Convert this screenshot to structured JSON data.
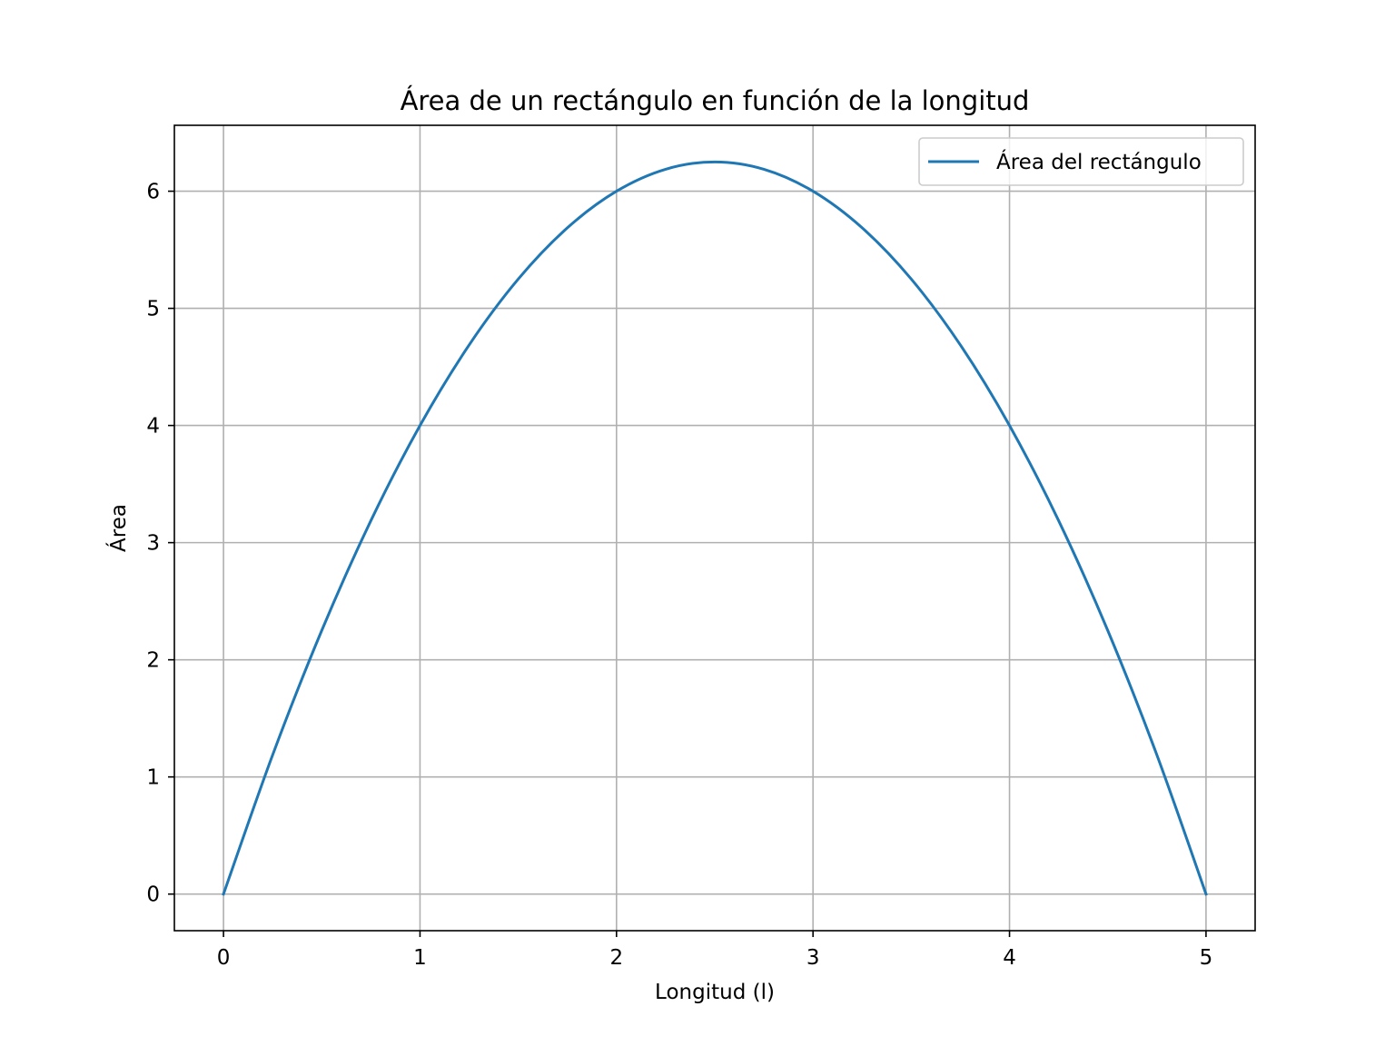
{
  "chart_data": {
    "type": "line",
    "title": "Área de un rectángulo en función de la longitud",
    "xlabel": "Longitud (l)",
    "ylabel": "Área",
    "xlim": [
      -0.25,
      5.25
    ],
    "ylim": [
      -0.3125,
      6.5625
    ],
    "x_ticks": [
      0,
      1,
      2,
      3,
      4,
      5
    ],
    "y_ticks": [
      0,
      1,
      2,
      3,
      4,
      5,
      6
    ],
    "grid": true,
    "legend_position": "top-right",
    "series": [
      {
        "name": "Área del rectángulo",
        "color": "#1f77b4",
        "x": [
          0,
          0.25,
          0.5,
          0.75,
          1,
          1.25,
          1.5,
          1.75,
          2,
          2.25,
          2.5,
          2.75,
          3,
          3.25,
          3.5,
          3.75,
          4,
          4.25,
          4.5,
          4.75,
          5
        ],
        "y": [
          0,
          1.1875,
          2.25,
          3.1875,
          4,
          4.6875,
          5.25,
          5.6875,
          6,
          6.1875,
          6.25,
          6.1875,
          6,
          5.6875,
          5.25,
          4.6875,
          4,
          3.1875,
          2.25,
          1.1875,
          0
        ]
      }
    ]
  }
}
